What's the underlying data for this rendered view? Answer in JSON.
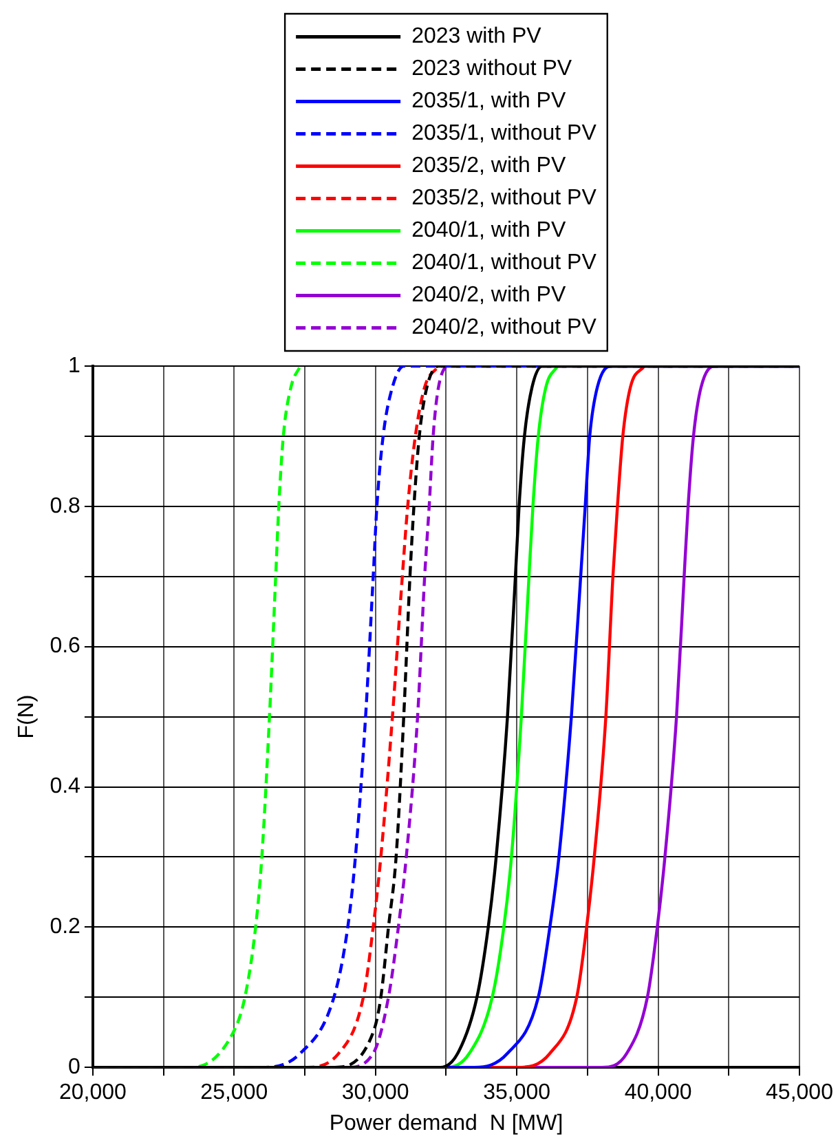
{
  "chart_data": {
    "type": "line",
    "xlabel": "Power demand  N [MW]",
    "ylabel": "F(N)",
    "legend": "top",
    "grid": true,
    "marker": "none",
    "xlim": [
      20000,
      45000
    ],
    "xticks": [
      {
        "value": 20000,
        "label": "20,000"
      },
      {
        "value": 22500,
        "label": null
      },
      {
        "value": 25000,
        "label": "25,000"
      },
      {
        "value": 27500,
        "label": null
      },
      {
        "value": 30000,
        "label": "30,000"
      },
      {
        "value": 32500,
        "label": null
      },
      {
        "value": 35000,
        "label": "35,000"
      },
      {
        "value": 37500,
        "label": null
      },
      {
        "value": 40000,
        "label": "40,000"
      },
      {
        "value": 42500,
        "label": null
      },
      {
        "value": 45000,
        "label": "45,000"
      }
    ],
    "ylim": [
      0,
      1
    ],
    "yticks": [
      0,
      {
        "value": 0.1,
        "label": null
      },
      0.2,
      {
        "value": 0.3,
        "label": null
      },
      0.4,
      {
        "value": 0.5,
        "label": null
      },
      0.6,
      {
        "value": 0.7,
        "label": null
      },
      0.8,
      {
        "value": 0.9,
        "label": null
      },
      1
    ],
    "series": [
      {
        "name": "2023 with PV",
        "color": "#000000",
        "line_style": "solid",
        "x": [
          20000,
          32300,
          32910,
          33590,
          33990,
          34270,
          34670,
          34950,
          35080,
          35270,
          35540,
          35900,
          45000
        ],
        "values": [
          0,
          0,
          0.02,
          0.1,
          0.2,
          0.3,
          0.5,
          0.7,
          0.8,
          0.9,
          0.97,
          1,
          1
        ]
      },
      {
        "name": "2023 without PV",
        "color": "#000000",
        "line_style": "dashed",
        "x": [
          20000,
          28500,
          29920,
          30190,
          30460,
          30730,
          31000,
          31220,
          31360,
          31550,
          31820,
          32230,
          45000
        ],
        "values": [
          0,
          0,
          0.05,
          0.1,
          0.2,
          0.3,
          0.5,
          0.7,
          0.8,
          0.9,
          0.97,
          1,
          1
        ]
      },
      {
        "name": "2035/1, with PV",
        "color": "#0000ff",
        "line_style": "solid",
        "x": [
          20000,
          33500,
          34670,
          35760,
          36170,
          36490,
          36930,
          37260,
          37420,
          37580,
          37850,
          38340,
          45000
        ],
        "values": [
          0,
          0,
          0.02,
          0.1,
          0.2,
          0.3,
          0.5,
          0.7,
          0.8,
          0.9,
          0.97,
          1,
          1
        ]
      },
      {
        "name": "2035/1, without PV",
        "color": "#0000ff",
        "line_style": "dashed",
        "x": [
          20000,
          26000,
          27340,
          28530,
          29020,
          29290,
          29650,
          29920,
          30050,
          30270,
          30600,
          31000,
          45000
        ],
        "values": [
          0,
          0,
          0.02,
          0.1,
          0.2,
          0.3,
          0.5,
          0.7,
          0.8,
          0.9,
          0.97,
          1,
          1
        ]
      },
      {
        "name": "2035/2, with PV",
        "color": "#ff0000",
        "line_style": "solid",
        "x": [
          20000,
          35000,
          36170,
          37120,
          37470,
          37740,
          38150,
          38400,
          38560,
          38750,
          39020,
          39510
        ],
        "values": [
          0,
          0,
          0.02,
          0.1,
          0.2,
          0.3,
          0.5,
          0.7,
          0.8,
          0.9,
          0.97,
          1
        ]
      },
      {
        "name": "2035/2, without PV",
        "color": "#ff0000",
        "line_style": "dashed",
        "x": [
          20000,
          27500,
          28700,
          29570,
          29920,
          30190,
          30600,
          30950,
          31140,
          31410,
          31740,
          32230
        ],
        "values": [
          0,
          0,
          0.02,
          0.1,
          0.2,
          0.3,
          0.5,
          0.7,
          0.8,
          0.9,
          0.97,
          1
        ]
      },
      {
        "name": "2040/1, with PV",
        "color": "#00ff00",
        "line_style": "solid",
        "x": [
          20000,
          32500,
          33320,
          34130,
          34540,
          34810,
          35160,
          35430,
          35570,
          35760,
          36030,
          36440
        ],
        "values": [
          0,
          0,
          0.02,
          0.1,
          0.2,
          0.3,
          0.5,
          0.7,
          0.8,
          0.9,
          0.97,
          1
        ]
      },
      {
        "name": "2040/1, without PV",
        "color": "#00ff00",
        "line_style": "dashed",
        "x": [
          20000,
          23500,
          24970,
          25380,
          25760,
          25980,
          26250,
          26470,
          26580,
          26740,
          27010,
          27340
        ],
        "values": [
          0,
          0,
          0.05,
          0.1,
          0.2,
          0.3,
          0.5,
          0.7,
          0.8,
          0.9,
          0.97,
          1
        ]
      },
      {
        "name": "2040/2, with PV",
        "color": "#9400d3",
        "line_style": "solid",
        "x": [
          20000,
          38000,
          38890,
          39620,
          39970,
          40240,
          40650,
          40920,
          41060,
          41250,
          41520,
          42010,
          45000
        ],
        "values": [
          0,
          0,
          0.02,
          0.1,
          0.2,
          0.3,
          0.5,
          0.7,
          0.8,
          0.9,
          0.97,
          1,
          1
        ]
      },
      {
        "name": "2040/2, without PV",
        "color": "#9400d3",
        "line_style": "dashed",
        "x": [
          20000,
          29000,
          29920,
          30460,
          30810,
          31090,
          31490,
          31740,
          31900,
          32040,
          32230,
          32640,
          45000
        ],
        "values": [
          0,
          0,
          0.02,
          0.1,
          0.2,
          0.3,
          0.5,
          0.7,
          0.8,
          0.9,
          0.97,
          1,
          1
        ]
      }
    ]
  }
}
